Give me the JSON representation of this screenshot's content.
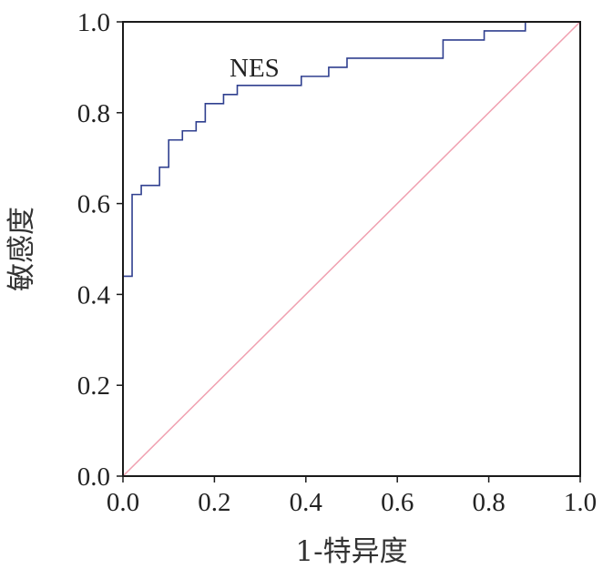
{
  "chart_data": {
    "type": "line",
    "title": "",
    "xlabel": "1-特异度",
    "ylabel": "敏感度",
    "xlim": [
      0,
      1
    ],
    "ylim": [
      0,
      1
    ],
    "grid": false,
    "x_ticks": [
      "0.0",
      "0.2",
      "0.4",
      "0.6",
      "0.8",
      "1.0"
    ],
    "y_ticks": [
      "0.0",
      "0.2",
      "0.4",
      "0.6",
      "0.8",
      "1.0"
    ],
    "series": [
      {
        "name": "NES",
        "color": "#2f3f8f",
        "step": true,
        "x": [
          0,
          0.02,
          0.04,
          0.08,
          0.1,
          0.13,
          0.16,
          0.18,
          0.22,
          0.25,
          0.39,
          0.45,
          0.49,
          0.7,
          0.79,
          0.88,
          1.0
        ],
        "y": [
          0.44,
          0.62,
          0.64,
          0.68,
          0.74,
          0.76,
          0.78,
          0.82,
          0.84,
          0.86,
          0.88,
          0.9,
          0.92,
          0.96,
          0.98,
          1.0,
          1.0
        ]
      },
      {
        "color": "#f0a0b0",
        "x": [
          0,
          1
        ],
        "y": [
          0,
          1
        ]
      }
    ]
  }
}
